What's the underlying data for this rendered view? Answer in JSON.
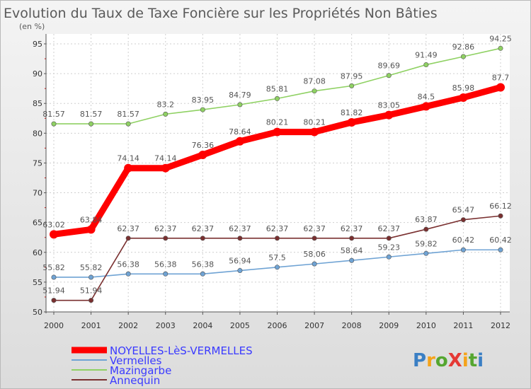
{
  "chart_data": {
    "type": "line",
    "title": "Evolution du Taux de Taxe Foncière sur les Propriétés Non Bâties",
    "subtitle": "(en %)",
    "xlabel": "",
    "ylabel": "(en %)",
    "ylim": [
      50,
      95
    ],
    "yticks": [
      50,
      55,
      60,
      65,
      70,
      75,
      80,
      85,
      90,
      95
    ],
    "x": [
      "2000",
      "2001",
      "2002",
      "2003",
      "2004",
      "2005",
      "2006",
      "2007",
      "2008",
      "2009",
      "2010",
      "2011",
      "2012"
    ],
    "grid": true,
    "legend_position": "bottom-left",
    "series": [
      {
        "name": "NOYELLES-LèS-VERMELLES",
        "color": "#ff0000",
        "labels": [
          "63.02",
          "63.84",
          "74.14",
          "74.14",
          "76.36",
          "78.64",
          "80.21",
          "80.21",
          "81.82",
          "83.05",
          "84.5",
          "85.98",
          "87.7"
        ],
        "values": [
          63.02,
          63.84,
          74.14,
          74.14,
          76.36,
          78.64,
          80.21,
          80.21,
          81.82,
          83.05,
          84.5,
          85.98,
          87.7
        ]
      },
      {
        "name": "Vermelles",
        "color": "#6fa3d4",
        "labels": [
          "55.82",
          "55.82",
          "56.38",
          "56.38",
          "56.38",
          "56.94",
          "57.5",
          "58.06",
          "58.64",
          "59.23",
          "59.82",
          "60.42",
          "60.42"
        ],
        "values": [
          55.82,
          55.82,
          56.38,
          56.38,
          56.38,
          56.94,
          57.5,
          58.06,
          58.64,
          59.23,
          59.82,
          60.42,
          60.42
        ]
      },
      {
        "name": "Mazingarbe",
        "color": "#8fd163",
        "labels": [
          "81.57",
          "81.57",
          "81.57",
          "83.2",
          "83.95",
          "84.79",
          "85.81",
          "87.08",
          "87.95",
          "89.69",
          "91.49",
          "92.86",
          "94.25"
        ],
        "values": [
          81.57,
          81.57,
          81.57,
          83.2,
          83.95,
          84.79,
          85.81,
          87.08,
          87.95,
          89.69,
          91.49,
          92.86,
          94.25
        ]
      },
      {
        "name": "Annequin",
        "color": "#7a3030",
        "labels": [
          "51.94",
          "51.94",
          "62.37",
          "62.37",
          "62.37",
          "62.37",
          "62.37",
          "62.37",
          "62.37",
          "62.37",
          "63.87",
          "65.47",
          "66.12"
        ],
        "values": [
          51.94,
          51.94,
          62.37,
          62.37,
          62.37,
          62.37,
          62.37,
          62.37,
          62.37,
          62.37,
          63.87,
          65.47,
          66.12
        ]
      }
    ]
  },
  "logo": {
    "text": "ProXiti"
  }
}
